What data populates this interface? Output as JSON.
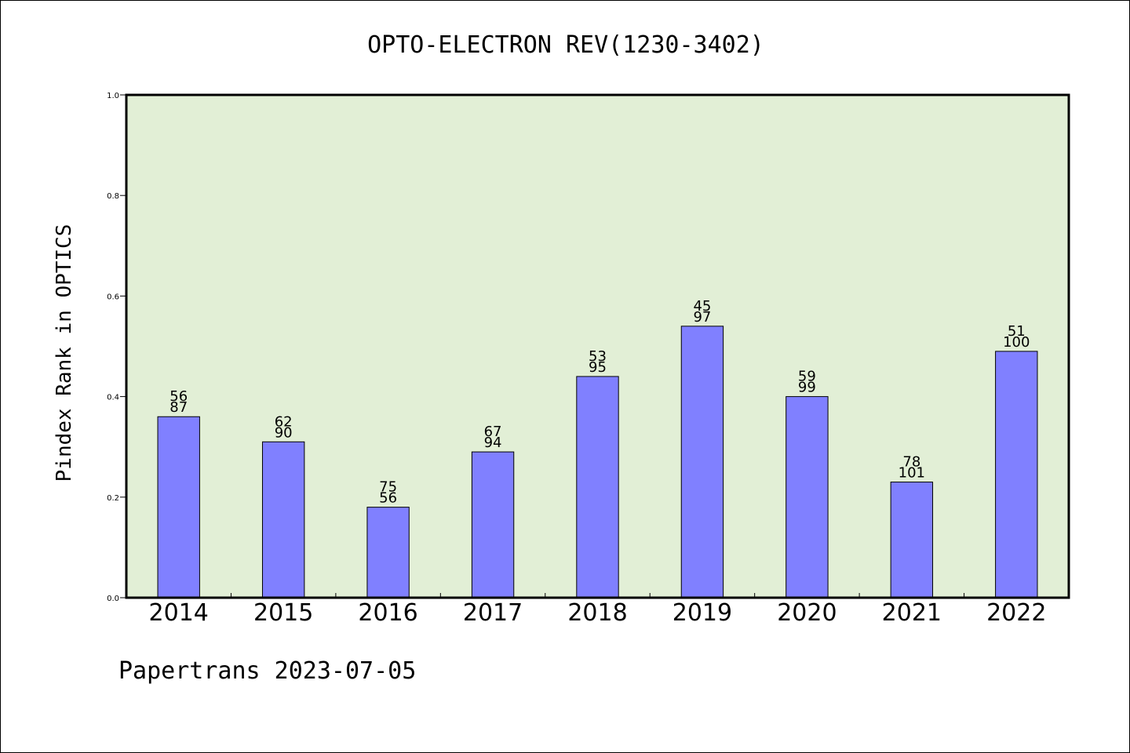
{
  "chart_data": {
    "type": "bar",
    "title": "OPTO-ELECTRON REV(1230-3402)",
    "xlabel": "",
    "ylabel": "Pindex Rank in OPTICS",
    "categories": [
      "2014",
      "2015",
      "2016",
      "2017",
      "2018",
      "2019",
      "2020",
      "2021",
      "2022"
    ],
    "values": [
      0.36,
      0.31,
      0.18,
      0.29,
      0.44,
      0.54,
      0.4,
      0.23,
      0.49
    ],
    "bar_labels_top": [
      "56",
      "62",
      "75",
      "67",
      "53",
      "45",
      "59",
      "78",
      "51"
    ],
    "bar_labels_bottom": [
      "87",
      "90",
      "56",
      "94",
      "95",
      "97",
      "99",
      "101",
      "100"
    ],
    "ylim": [
      0.0,
      1.0
    ],
    "yticks": [
      "0.0",
      "0.2",
      "0.4",
      "0.6",
      "0.8",
      "1.0"
    ],
    "grid": false,
    "colors": {
      "plot_background": "#e2efd6",
      "bar_fill": "#8080ff",
      "bar_stroke": "#000000"
    }
  },
  "footer": {
    "text": "Papertrans 2023-07-05"
  }
}
